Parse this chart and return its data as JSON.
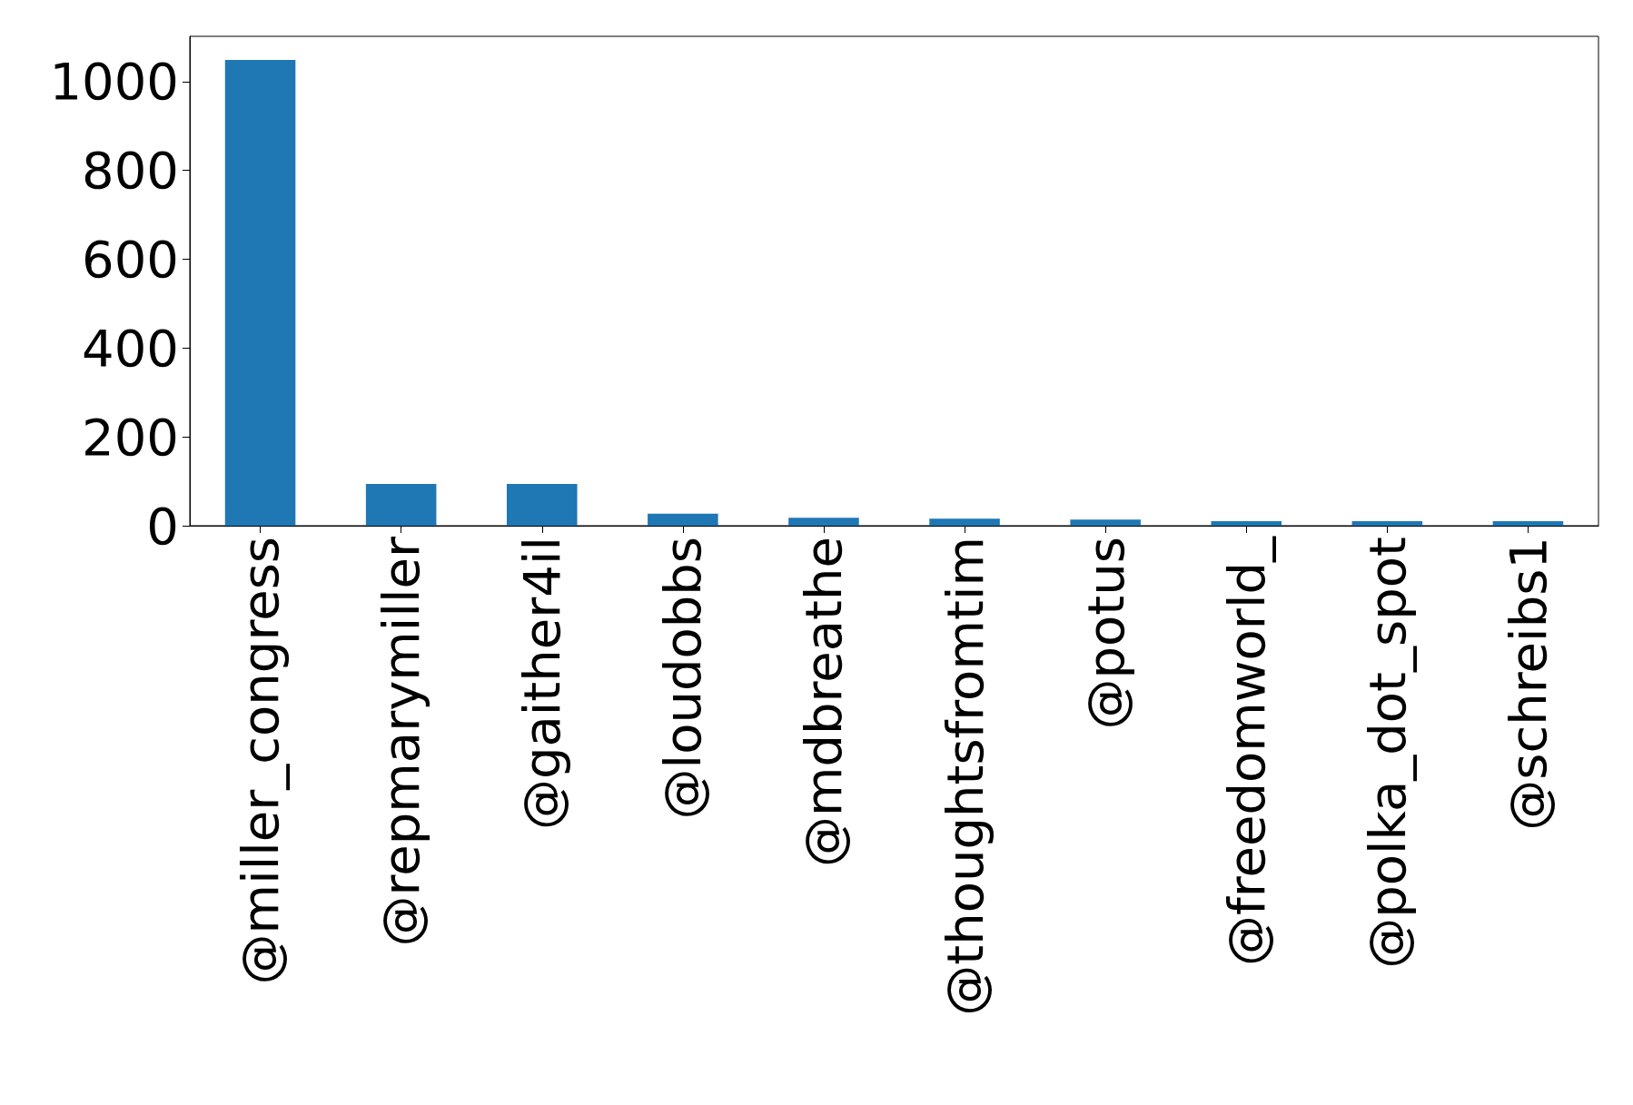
{
  "chart_data": {
    "type": "bar",
    "categories": [
      "@miller_congress",
      "@repmarymiller",
      "@gaither4il",
      "@loudobbs",
      "@mdbreathe",
      "@thoughtsfromtim",
      "@potus",
      "@freedomworld_",
      "@polka_dot_spot",
      "@schreibs1"
    ],
    "values": [
      1049,
      94,
      94,
      27,
      18,
      16,
      14,
      10,
      10,
      10
    ],
    "color": "#1f77b4",
    "ylim": [
      0,
      1102
    ],
    "yticks": [
      0,
      200,
      400,
      600,
      800,
      1000
    ],
    "grid": false
  }
}
